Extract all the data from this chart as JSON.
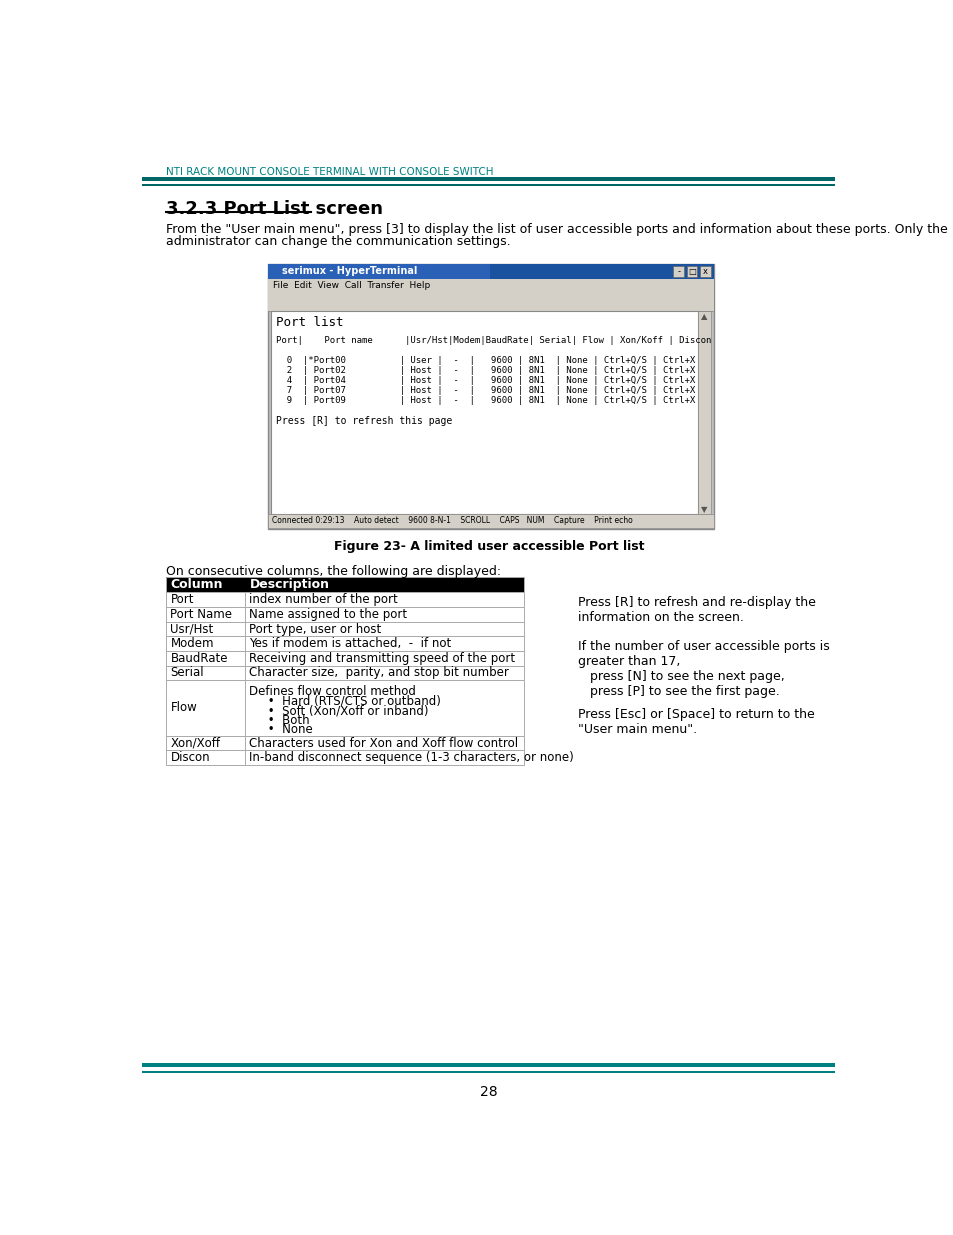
{
  "header_text": "NTI RACK MOUNT CONSOLE TERMINAL WITH CONSOLE SWITCH",
  "header_color": "#008080",
  "teal_bar_color": "#006666",
  "section_title": "3.2.3 Port List screen",
  "intro_text": "From the \"User main menu\", press [3] to display the list of user accessible ports and information about these ports. Only the\nadministrator can change the communication settings.",
  "figure_caption": "Figure 23- A limited user accessible Port list",
  "table_intro": "On consecutive columns, the following are displayed:",
  "table_header": [
    "Column",
    "Description"
  ],
  "table_header_bg": "#000000",
  "table_header_fg": "#ffffff",
  "table_rows": [
    [
      "Port",
      "index number of the port"
    ],
    [
      "Port Name",
      "Name assigned to the port"
    ],
    [
      "Usr/Hst",
      "Port type, user or host"
    ],
    [
      "Modem",
      "Yes if modem is attached,  -  if not"
    ],
    [
      "BaudRate",
      "Receiving and transmitting speed of the port"
    ],
    [
      "Serial",
      "Character size,  parity, and stop bit number"
    ],
    [
      "Flow",
      "Defines flow control method\n     •  Hard (RTS/CTS or outband)\n     •  Soft (Xon/Xoff or inband)\n     •  Both\n     •  None"
    ],
    [
      "Xon/Xoff",
      "Characters used for Xon and Xoff flow control"
    ],
    [
      "Discon",
      "In-band disconnect sequence (1-3 characters, or none)"
    ]
  ],
  "right_text_1": "Press [R] to refresh and re-display the\ninformation on the screen.",
  "right_text_2": "If the number of user accessible ports is\ngreater than 17,\n   press [N] to see the next page,\n   press [P] to see the first page.",
  "right_text_3": "Press [Esc] or [Space] to return to the\n\"User main menu\".",
  "page_number": "28",
  "terminal_title": "serimux - HyperTerminal",
  "terminal_menu_items": "File  Edit  View  Call  Transfer  Help",
  "bottom_bar_color": "#008080",
  "page_bg": "#ffffff"
}
